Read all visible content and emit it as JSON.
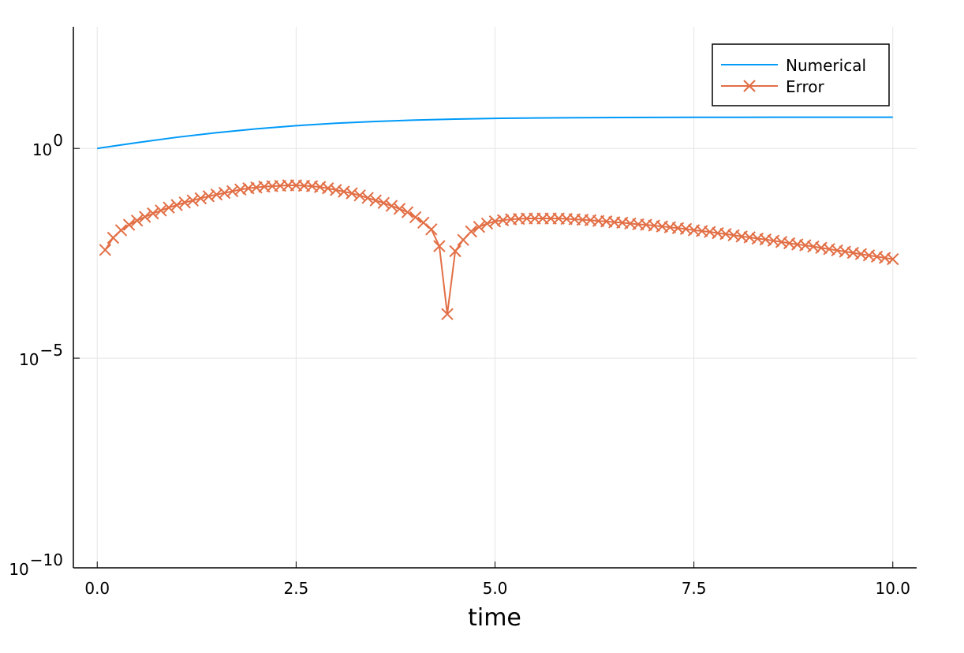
{
  "chart_data": {
    "type": "line",
    "title": "",
    "xlabel": "time",
    "ylabel": "",
    "yscale": "log10",
    "xlim": [
      -0.3,
      10.3
    ],
    "ylim": [
      -10,
      2.9
    ],
    "grid": true,
    "legend_position": "top-right",
    "x_ticks": [
      {
        "value": 0.0,
        "label": "0.0"
      },
      {
        "value": 2.5,
        "label": "2.5"
      },
      {
        "value": 5.0,
        "label": "5.0"
      },
      {
        "value": 7.5,
        "label": "7.5"
      },
      {
        "value": 10.0,
        "label": "10.0"
      }
    ],
    "y_ticks": [
      {
        "value": 0,
        "base": "10",
        "exp": "0"
      },
      {
        "value": -5,
        "base": "10",
        "exp": "−5"
      },
      {
        "value": -10,
        "base": "10",
        "exp": "−10"
      }
    ],
    "series": [
      {
        "name": "Numerical",
        "color": "#009af9",
        "marker": "none",
        "x": [
          0,
          0.5,
          1,
          1.5,
          2,
          2.5,
          3,
          3.5,
          4,
          4.5,
          5,
          5.5,
          6,
          6.5,
          7,
          7.5,
          8,
          8.5,
          9,
          9.5,
          10
        ],
        "log10_y": [
          0,
          0.138,
          0.266,
          0.376,
          0.467,
          0.542,
          0.6,
          0.643,
          0.676,
          0.7,
          0.716,
          0.726,
          0.733,
          0.737,
          0.74,
          0.742,
          0.743,
          0.744,
          0.745,
          0.745,
          0.745
        ]
      },
      {
        "name": "Error",
        "color": "#e26f46",
        "marker": "x",
        "x": [
          0.1,
          0.2,
          0.3,
          0.4,
          0.5,
          0.6,
          0.7,
          0.8,
          0.9,
          1.0,
          1.1,
          1.2,
          1.3,
          1.4,
          1.5,
          1.6,
          1.7,
          1.8,
          1.9,
          2.0,
          2.1,
          2.2,
          2.3,
          2.4,
          2.5,
          2.6,
          2.7,
          2.8,
          2.9,
          3.0,
          3.1,
          3.2,
          3.3,
          3.4,
          3.5,
          3.6,
          3.7,
          3.8,
          3.9,
          4.0,
          4.1,
          4.2,
          4.3,
          4.4,
          4.5,
          4.6,
          4.7,
          4.8,
          4.9,
          5.0,
          5.1,
          5.2,
          5.3,
          5.4,
          5.5,
          5.6,
          5.7,
          5.8,
          5.9,
          6.0,
          6.1,
          6.2,
          6.3,
          6.4,
          6.5,
          6.6,
          6.7,
          6.8,
          6.9,
          7.0,
          7.1,
          7.2,
          7.3,
          7.4,
          7.5,
          7.6,
          7.7,
          7.8,
          7.9,
          8.0,
          8.1,
          8.2,
          8.3,
          8.4,
          8.5,
          8.6,
          8.7,
          8.8,
          8.9,
          9.0,
          9.1,
          9.2,
          9.3,
          9.4,
          9.5,
          9.6,
          9.7,
          9.8,
          9.9,
          10.0
        ],
        "log10_y": [
          -2.42,
          -2.13,
          -1.95,
          -1.82,
          -1.72,
          -1.63,
          -1.55,
          -1.48,
          -1.41,
          -1.35,
          -1.29,
          -1.24,
          -1.19,
          -1.14,
          -1.1,
          -1.06,
          -1.02,
          -0.98,
          -0.95,
          -0.93,
          -0.91,
          -0.9,
          -0.89,
          -0.88,
          -0.88,
          -0.89,
          -0.9,
          -0.92,
          -0.95,
          -0.99,
          -1.03,
          -1.07,
          -1.12,
          -1.18,
          -1.24,
          -1.3,
          -1.37,
          -1.44,
          -1.52,
          -1.64,
          -1.77,
          -1.93,
          -2.33,
          -3.95,
          -2.45,
          -2.18,
          -1.98,
          -1.87,
          -1.79,
          -1.74,
          -1.71,
          -1.69,
          -1.68,
          -1.67,
          -1.67,
          -1.67,
          -1.67,
          -1.67,
          -1.68,
          -1.69,
          -1.7,
          -1.71,
          -1.73,
          -1.74,
          -1.76,
          -1.77,
          -1.79,
          -1.81,
          -1.82,
          -1.84,
          -1.86,
          -1.88,
          -1.9,
          -1.92,
          -1.95,
          -1.97,
          -1.99,
          -2.02,
          -2.04,
          -2.07,
          -2.1,
          -2.12,
          -2.15,
          -2.17,
          -2.2,
          -2.23,
          -2.26,
          -2.29,
          -2.31,
          -2.34,
          -2.37,
          -2.4,
          -2.43,
          -2.46,
          -2.49,
          -2.52,
          -2.55,
          -2.58,
          -2.61,
          -2.64
        ]
      }
    ]
  }
}
